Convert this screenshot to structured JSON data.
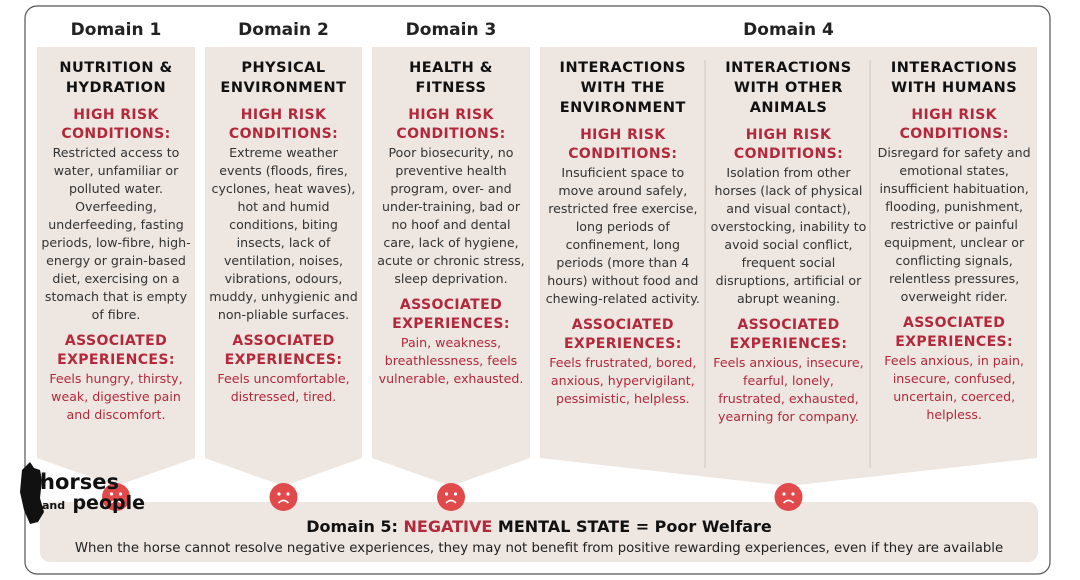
{
  "domains": [
    {
      "label": "Domain 1",
      "columns": [
        {
          "title": "NUTRITION & HYDRATION",
          "risk_heading": "HIGH RISK CONDITIONS:",
          "risk_text": "Restricted access to water, unfamiliar or polluted water. Overfeeding, underfeeding, fasting periods, low-fibre, high-energy or grain-based diet, exercising on a stomach that is empty of fibre.",
          "experience_heading": "ASSOCIATED EXPERIENCES:",
          "experience_text": "Feels hungry, thirsty, weak, digestive pain and discomfort."
        }
      ]
    },
    {
      "label": "Domain 2",
      "columns": [
        {
          "title": "PHYSICAL ENVIRONMENT",
          "risk_heading": "HIGH RISK CONDITIONS:",
          "risk_text": "Extreme weather events (floods, fires, cyclones, heat waves), hot and humid conditions, biting insects, lack of ventilation, noises, vibrations, odours, muddy, unhygienic and non-pliable surfaces.",
          "experience_heading": "ASSOCIATED EXPERIENCES:",
          "experience_text": "Feels uncomfortable, distressed, tired."
        }
      ]
    },
    {
      "label": "Domain 3",
      "columns": [
        {
          "title": "HEALTH & FITNESS",
          "risk_heading": "HIGH RISK CONDITIONS:",
          "risk_text": "Poor biosecurity, no preventive health program, over- and under-training, bad or no hoof and dental care, lack of hygiene, acute or chronic stress, sleep deprivation.",
          "experience_heading": "ASSOCIATED EXPERIENCES:",
          "experience_text": "Pain, weakness, breathlessness, feels vulnerable, exhausted."
        }
      ]
    },
    {
      "label": "Domain 4",
      "columns": [
        {
          "title": "INTERACTIONS WITH THE ENVIRONMENT",
          "risk_heading": "HIGH RISK CONDITIONS:",
          "risk_text": "Insuficient space to move around safely, restricted free exercise, long periods of confinement, long periods (more than 4 hours) without food and chewing-related activity.",
          "experience_heading": "ASSOCIATED EXPERIENCES:",
          "experience_text": "Feels frustrated, bored, anxious, hypervigilant, pessimistic, helpless."
        },
        {
          "title": "INTERACTIONS WITH OTHER ANIMALS",
          "risk_heading": "HIGH RISK CONDITIONS:",
          "risk_text": "Isolation from other horses (lack of physical and visual contact), overstocking, inability to avoid social conflict, frequent social disruptions, artificial or abrupt weaning.",
          "experience_heading": "ASSOCIATED EXPERIENCES:",
          "experience_text": "Feels anxious, insecure, fearful, lonely, frustrated, exhausted, yearning for company."
        },
        {
          "title": "INTERACTIONS WITH HUMANS",
          "risk_heading": "HIGH RISK CONDITIONS:",
          "risk_text": "Disregard for safety and emotional states, insufficient habituation, flooding, punishment, restrictive or painful equipment, unclear or conflicting signals, relentless pressures, overweight rider.",
          "experience_heading": "ASSOCIATED EXPERIENCES:",
          "experience_text": "Feels anxious, in pain, insecure, confused, uncertain, coerced, helpless."
        }
      ]
    }
  ],
  "domain5": {
    "prefix": "Domain 5:",
    "highlight": "NEGATIVE",
    "suffix": "MENTAL STATE = Poor Welfare",
    "text": "When the horse cannot resolve negative experiences, they may not benefit from positive rewarding experiences, even if they are available"
  },
  "logo": {
    "line1": "horses",
    "line2": "and",
    "line3": "people"
  }
}
